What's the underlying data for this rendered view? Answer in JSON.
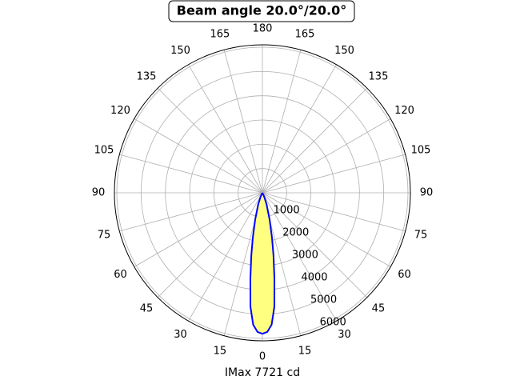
{
  "chart_data": {
    "type": "polar",
    "title": "Beam angle 20.0°/20.0°",
    "xlabel": "IMax 7721 cd",
    "x": [
      -30,
      -25,
      -20,
      -15,
      -12,
      -10,
      -8,
      -6,
      -4,
      -2,
      0,
      2,
      4,
      6,
      8,
      10,
      12,
      15,
      20,
      25,
      30
    ],
    "series": [
      {
        "color": "#0000ff",
        "fill": "#ffff80",
        "values": [
          0,
          170,
          500,
          1160,
          1910,
          2640,
          3560,
          4720,
          5450,
          5740,
          5810,
          5740,
          5450,
          4720,
          3560,
          2640,
          1910,
          1160,
          500,
          170,
          0
        ]
      }
    ],
    "ylim": [
      0,
      6100
    ],
    "yticks": [
      1000,
      2000,
      3000,
      4000,
      5000,
      6000
    ],
    "xticks": [
      0,
      15,
      30,
      45,
      60,
      75,
      90,
      105,
      120,
      135,
      150,
      165,
      180,
      {
        "value": -15,
        "label": "15"
      },
      {
        "value": -30,
        "label": "30"
      },
      {
        "value": -45,
        "label": "45"
      },
      {
        "value": -60,
        "label": "60"
      },
      {
        "value": -75,
        "label": "75"
      },
      {
        "value": -90,
        "label": "90"
      },
      {
        "value": -105,
        "label": "105"
      },
      {
        "value": -120,
        "label": "120"
      },
      {
        "value": -135,
        "label": "135"
      },
      {
        "value": -150,
        "label": "150"
      },
      {
        "value": -165,
        "label": "165"
      }
    ],
    "grid": true
  }
}
